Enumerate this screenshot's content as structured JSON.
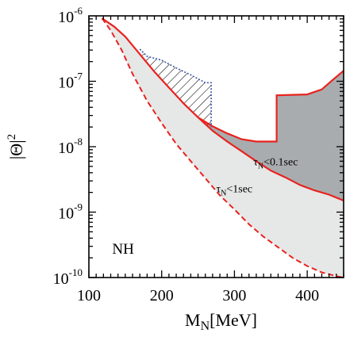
{
  "chart_data": {
    "type": "area",
    "xlabel": {
      "main": "M",
      "sub": "N",
      "unit": "[MeV]"
    },
    "ylabel": {
      "main": "|Θ|",
      "sup": "2"
    },
    "xlim": [
      100,
      450
    ],
    "ylim": [
      1e-10,
      1e-06
    ],
    "yscale": "log",
    "xticks": [
      100,
      200,
      300,
      400
    ],
    "xtick_labels": [
      "100",
      "200",
      "300",
      "400"
    ],
    "yticks": [
      1e-10,
      1e-09,
      1e-08,
      1e-07,
      1e-06
    ],
    "ytick_labels": [
      {
        "base": "10",
        "exp": "-10"
      },
      {
        "base": "10",
        "exp": "-9"
      },
      {
        "base": "10",
        "exp": "-8"
      },
      {
        "base": "10",
        "exp": "-7"
      },
      {
        "base": "10",
        "exp": "-6"
      }
    ],
    "grid": false,
    "annotations": [
      {
        "id": "hierarchy",
        "text": "NH"
      },
      {
        "id": "tau01",
        "main": "τ",
        "sub": "N",
        "rest": "<0.1sec"
      },
      {
        "id": "tau1",
        "main": "τ",
        "sub": "N",
        "rest": "<1sec"
      }
    ],
    "colors": {
      "light_region": "#e6e7e7",
      "dark_region": "#a9acae",
      "boundary": "#e8231f",
      "hatch_edge": "#3a57a8",
      "hatch": "#000000"
    },
    "series": [
      {
        "style": "dashed",
        "x": [
          118,
          130,
          145,
          160,
          180,
          200,
          220,
          240,
          260,
          280,
          300,
          320,
          340,
          360,
          380,
          400,
          420,
          440,
          450
        ],
        "y": [
          9.2e-07,
          6e-07,
          3e-07,
          1.3e-07,
          5e-08,
          2.3e-08,
          1.1e-08,
          6e-09,
          3.3e-09,
          1.8e-09,
          1.1e-09,
          6.5e-10,
          4.2e-10,
          2.9e-10,
          2e-10,
          1.5e-10,
          1.2e-10,
          1.05e-10,
          1e-10
        ]
      },
      {
        "style": "solid",
        "x": [
          118,
          135,
          150,
          170,
          190,
          210,
          230,
          250,
          270,
          290,
          310,
          330,
          350,
          370,
          390,
          410,
          430,
          450
        ],
        "y": [
          9.2e-07,
          6.8e-07,
          4.8e-07,
          2.6e-07,
          1.4e-07,
          8e-08,
          4.6e-08,
          2.8e-08,
          1.75e-08,
          1.2e-08,
          8.5e-09,
          6e-09,
          4.3e-09,
          3.4e-09,
          2.6e-09,
          2.15e-09,
          1.85e-09,
          1.5e-09
        ]
      },
      {
        "style": "solid",
        "x": [
          250,
          270,
          290,
          310,
          330,
          350,
          358,
          358,
          380,
          400,
          420,
          435,
          450
        ],
        "y": [
          2.8e-08,
          2.05e-08,
          1.6e-08,
          1.3e-08,
          1.2e-08,
          1.2e-08,
          1.2e-08,
          6.1e-08,
          6.2e-08,
          6.3e-08,
          7.5e-08,
          1.05e-07,
          1.45e-07
        ]
      },
      {
        "style": "dotted-hatch-edge",
        "x": [
          170,
          180,
          200,
          220,
          240,
          260,
          268,
          268
        ],
        "y": [
          3.1e-07,
          2.4e-07,
          2.1e-07,
          1.6e-07,
          1.25e-07,
          9.5e-08,
          9.5e-08,
          2e-08
        ]
      }
    ]
  }
}
